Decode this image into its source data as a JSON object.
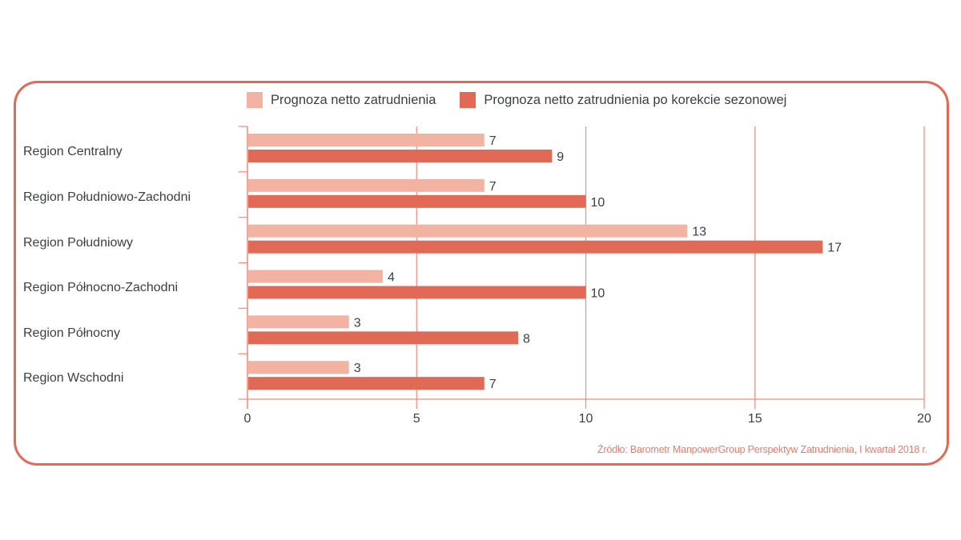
{
  "chart_data": {
    "type": "bar",
    "orientation": "horizontal",
    "title": "",
    "xlabel": "",
    "ylabel": "",
    "xlim": [
      0,
      20
    ],
    "x_ticks": [
      0,
      5,
      10,
      15,
      20
    ],
    "grid": "vertical",
    "legend_position": "top",
    "categories": [
      "Region Centralny",
      "Region Południowo-Zachodni",
      "Region Południowy",
      "Region Północno-Zachodni",
      "Region Północny",
      "Region Wschodni"
    ],
    "series": [
      {
        "name": "Prognoza netto zatrudnienia",
        "color": "#F2B3A2",
        "values": [
          7,
          7,
          13,
          4,
          3,
          3
        ]
      },
      {
        "name": "Prognoza netto zatrudnienia po korekcie sezonowej",
        "color": "#E06A55",
        "values": [
          9,
          10,
          17,
          10,
          8,
          7
        ]
      }
    ],
    "source_note": "Źródło: Barometr ManpowerGroup Perspektyw Zatrudnienia, I kwartał 2018 r."
  },
  "colors": {
    "frame": "#E06A55",
    "axis": "#EE8A7C",
    "text": "#3a3f45",
    "source": "#E97B6A"
  }
}
